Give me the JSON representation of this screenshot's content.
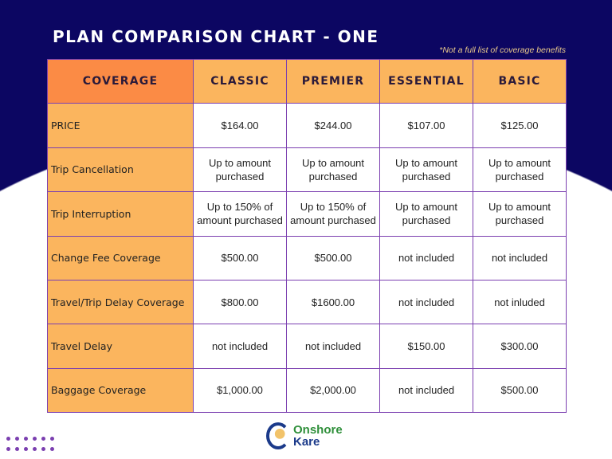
{
  "title": "PLAN COMPARISON CHART  - ONE",
  "note": "*Not a full list of coverage benefits",
  "headers": [
    "COVERAGE",
    "CLASSIC",
    "PREMIER",
    "ESSENTIAL",
    "BASIC"
  ],
  "rows": [
    {
      "label": "PRICE",
      "values": [
        "$164.00",
        "$244.00",
        "$107.00",
        "$125.00"
      ]
    },
    {
      "label": "Trip Cancellation",
      "values": [
        "Up to amount purchased",
        "Up to amount purchased",
        "Up to amount purchased",
        "Up to amount purchased"
      ]
    },
    {
      "label": "Trip Interruption",
      "values": [
        "Up to 150% of amount purchased",
        "Up to 150% of amount purchased",
        "Up to amount purchased",
        "Up to amount purchased"
      ]
    },
    {
      "label": "Change Fee Coverage",
      "values": [
        "$500.00",
        "$500.00",
        "not included",
        "not included"
      ]
    },
    {
      "label": "Travel/Trip Delay Coverage",
      "values": [
        "$800.00",
        "$1600.00",
        "not included",
        "not inluded"
      ]
    },
    {
      "label": "Travel Delay",
      "values": [
        "not included",
        "not included",
        "$150.00",
        "$300.00"
      ]
    },
    {
      "label": "Baggage Coverage",
      "values": [
        "$1,000.00",
        "$2,000.00",
        "not included",
        "$500.00"
      ]
    }
  ],
  "logo": {
    "line1": "Onshore",
    "line2": "Kare"
  },
  "colors": {
    "navy": "#0c0662",
    "header": "#fbb55e",
    "coverage_header": "#fb8b45",
    "border": "#7b3fb0"
  }
}
